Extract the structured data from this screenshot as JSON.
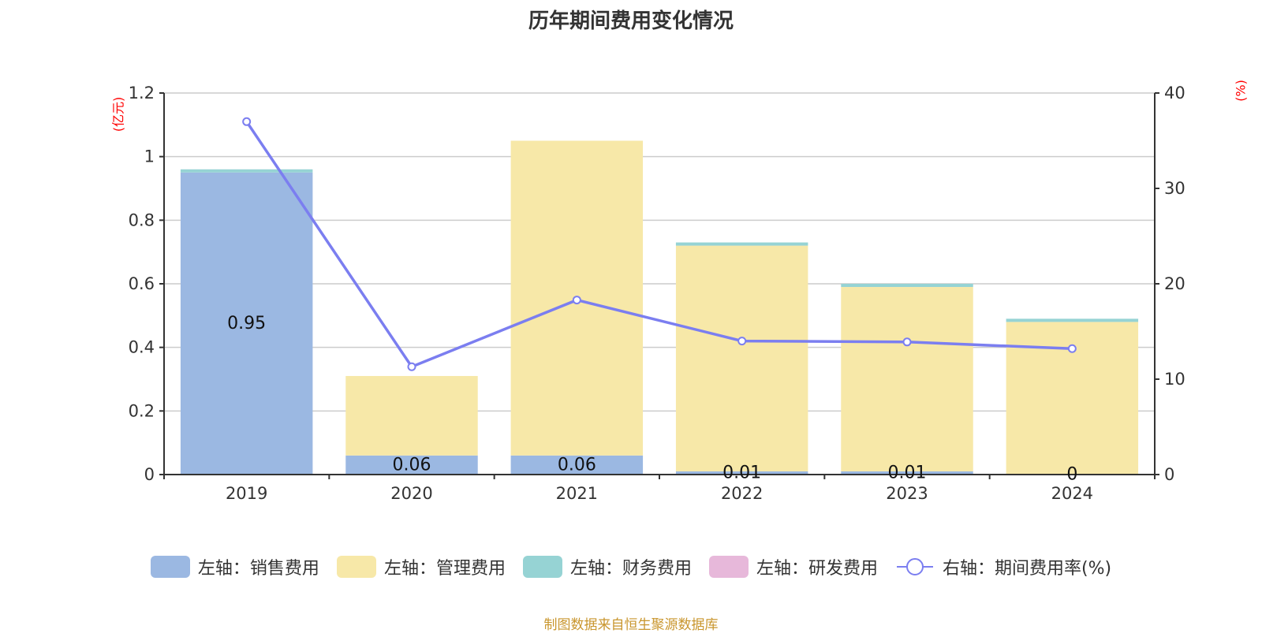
{
  "chart_data": {
    "type": "bar",
    "title": "历年期间费用变化情况",
    "categories": [
      "2019",
      "2020",
      "2021",
      "2022",
      "2023",
      "2024"
    ],
    "y_left": {
      "unit": "(亿元)",
      "ylim": [
        0,
        1.2
      ],
      "ticks": [
        "0",
        "0.2",
        "0.4",
        "0.6",
        "0.8",
        "1",
        "1.2"
      ],
      "tick_values": [
        0,
        0.2,
        0.4,
        0.6,
        0.8,
        1,
        1.2
      ]
    },
    "y_right": {
      "unit": "(%)",
      "ylim": [
        0,
        40
      ],
      "ticks": [
        "0",
        "10",
        "20",
        "30",
        "40"
      ],
      "tick_values": [
        0,
        10,
        20,
        30,
        40
      ]
    },
    "stacked_series": [
      {
        "name": "左轴：销售费用",
        "color": "#9bb8e2",
        "values": [
          0.95,
          0.06,
          0.06,
          0.01,
          0.01,
          0
        ],
        "labels": [
          "0.95",
          "0.06",
          "0.06",
          "0.01",
          "0.01",
          "0"
        ]
      },
      {
        "name": "左轴：管理费用",
        "color": "#f7e8a8",
        "values": [
          0,
          0.25,
          0.99,
          0.71,
          0.58,
          0.48
        ]
      },
      {
        "name": "左轴：财务费用",
        "color": "#96d3d4",
        "values": [
          0.01,
          0,
          0,
          0.01,
          0.01,
          0.01
        ]
      },
      {
        "name": "左轴：研发费用",
        "color": "#e7b8da",
        "values": [
          0,
          0,
          0,
          0,
          0,
          0
        ]
      }
    ],
    "line_series": {
      "name": "右轴：期间费用率(%)",
      "color": "#7b7ef0",
      "values": [
        37.0,
        11.3,
        18.3,
        14.0,
        13.9,
        13.2
      ]
    },
    "grid": true,
    "legend_position": "bottom"
  },
  "source_note": {
    "text": "制图数据来自恒生聚源数据库",
    "color": "#c9962e"
  }
}
